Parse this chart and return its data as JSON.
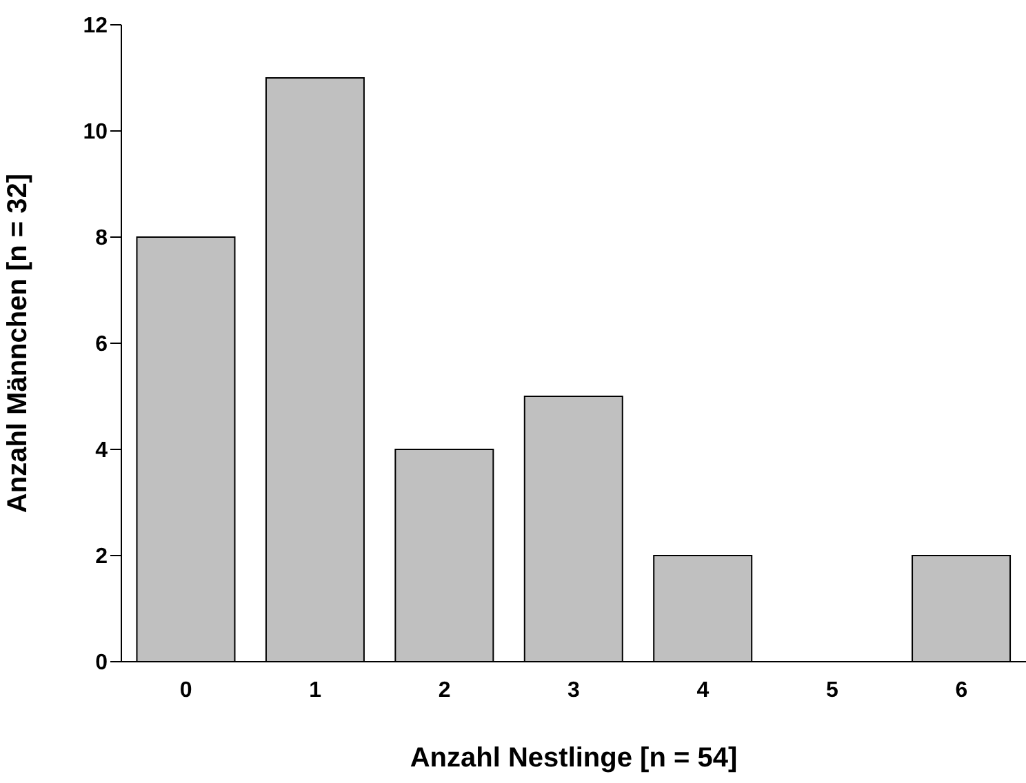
{
  "chart_data": {
    "type": "bar",
    "xlabel": "Anzahl Nestlinge [n = 54]",
    "ylabel": "Anzahl Männchen [n = 32]",
    "categories": [
      "0",
      "1",
      "2",
      "3",
      "4",
      "5",
      "6"
    ],
    "values": [
      8,
      11,
      4,
      5,
      2,
      0,
      2
    ],
    "color": "#c0c0c0",
    "ylim": [
      0,
      12
    ],
    "yticks": [
      0,
      2,
      4,
      6,
      8,
      10,
      12
    ]
  }
}
